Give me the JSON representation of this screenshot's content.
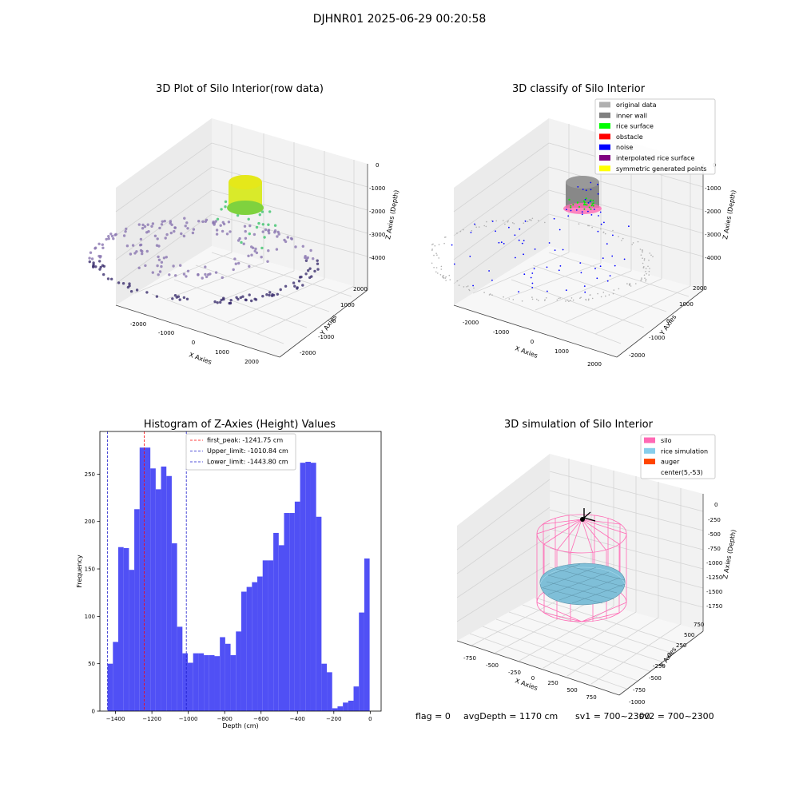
{
  "figure": {
    "suptitle": "DJHNR01 2025-06-29 00:20:58",
    "footer": {
      "flag": "flag = 0",
      "avg_depth": "avgDepth = 1170 cm",
      "sv1": "sv1 = 700~2300",
      "sv2": "sv2 = 700~2300"
    }
  },
  "colors": {
    "hist_bar": "#5050f5",
    "first_peak_line": "#ff0000",
    "limit_line": "#1a1acc",
    "pane": "#f2f2f2",
    "grid": "#d4d4d4",
    "silo": "#ff69b4",
    "rice": "#87ceeb",
    "auger": "#ff4500",
    "raw_low": "#3b2e6e",
    "raw_mid": "#8a75b0",
    "raw_green": "#3cc36b",
    "raw_yellow": "#e5e81a"
  },
  "chart_data": [
    {
      "id": "raw",
      "type": "scatter3d",
      "title": "3D Plot of Silo Interior(row data)",
      "xlabel": "X Axies",
      "ylabel": "Y Axies",
      "zlabel": "Z Axies (Depth)",
      "x_ticks": [
        "-2000",
        "-1000",
        "0",
        "1000",
        "2000"
      ],
      "y_ticks": [
        "-2000",
        "-1000",
        "0",
        "1000",
        "2000"
      ],
      "z_ticks": [
        "0",
        "-1000",
        "-2000",
        "-3000",
        "-4000"
      ]
    },
    {
      "id": "classify",
      "type": "scatter3d",
      "title": "3D classify of Silo Interior",
      "xlabel": "X Axies",
      "ylabel": "Y Axies",
      "zlabel": "Z Axies (Depth)",
      "x_ticks": [
        "-2000",
        "-1000",
        "0",
        "1000",
        "2000"
      ],
      "y_ticks": [
        "-2000",
        "-1000",
        "0",
        "1000",
        "2000"
      ],
      "z_ticks": [
        "0",
        "-1000",
        "-2000",
        "-3000",
        "-4000"
      ],
      "legend": [
        {
          "label": "original data",
          "color": "#b0b0b0"
        },
        {
          "label": "inner wall",
          "color": "#808080"
        },
        {
          "label": "rice surface",
          "color": "#00ff00"
        },
        {
          "label": "obstacle",
          "color": "#ff0000"
        },
        {
          "label": "noise",
          "color": "#0000ff"
        },
        {
          "label": "interpolated rice surface",
          "color": "#800080"
        },
        {
          "label": "symmetric generated points",
          "color": "#ffff00"
        }
      ]
    },
    {
      "id": "hist",
      "type": "bar",
      "title": "Histogram of Z-Axies (Height) Values",
      "xlabel": "Depth (cm)",
      "ylabel": "Frequency",
      "xlim": [
        -1486,
        60
      ],
      "ylim": [
        0,
        295
      ],
      "bin_start": -1443.8,
      "bin_width": 29.4,
      "values": [
        50,
        73,
        173,
        172,
        149,
        213,
        278,
        278,
        256,
        234,
        258,
        248,
        177,
        89,
        61,
        51,
        61,
        61,
        59,
        59,
        58,
        78,
        71,
        59,
        84,
        126,
        131,
        136,
        142,
        159,
        159,
        188,
        175,
        209,
        209,
        221,
        262,
        263,
        262,
        205,
        50,
        41,
        3,
        5,
        9,
        11,
        26,
        104,
        161
      ],
      "x_ticks": [
        -1400,
        -1200,
        -1000,
        -800,
        -600,
        -400,
        -200,
        0
      ],
      "x_tick_labels": [
        "−1400",
        "−1200",
        "−1000",
        "−800",
        "−600",
        "−400",
        "−200",
        "0"
      ],
      "y_ticks": [
        0,
        50,
        100,
        150,
        200,
        250
      ],
      "y_tick_labels": [
        "0",
        "50",
        "100",
        "150",
        "200",
        "250"
      ],
      "vlines": [
        {
          "x": -1241.75,
          "label": "first_peak: -1241.75 cm",
          "color": "#ff0000"
        },
        {
          "x": -1010.84,
          "label": "Upper_limit: -1010.84 cm",
          "color": "#1a1acc"
        },
        {
          "x": -1443.8,
          "label": "Lower_limit: -1443.80 cm",
          "color": "#1a1acc"
        }
      ]
    },
    {
      "id": "sim",
      "type": "surface3d",
      "title": "3D simulation of Silo Interior",
      "xlabel": "X Axies",
      "ylabel": "Y Axies",
      "zlabel": "Z Axies (Depth)",
      "x_ticks": [
        "-750",
        "-500",
        "-250",
        "0",
        "250",
        "500",
        "750"
      ],
      "y_ticks": [
        "-1000",
        "-750",
        "-500",
        "-250",
        "0",
        "250",
        "500",
        "750"
      ],
      "z_ticks": [
        "0",
        "-250",
        "-500",
        "-750",
        "-1000",
        "-1250",
        "-1500",
        "-1750"
      ],
      "legend": [
        {
          "label": "silo",
          "color": "#ff69b4"
        },
        {
          "label": "rice simulation",
          "color": "#87ceeb"
        },
        {
          "label": "auger",
          "color": "#ff4500"
        },
        {
          "label": "center(5,-53)",
          "color": "#ffffff"
        }
      ]
    }
  ]
}
